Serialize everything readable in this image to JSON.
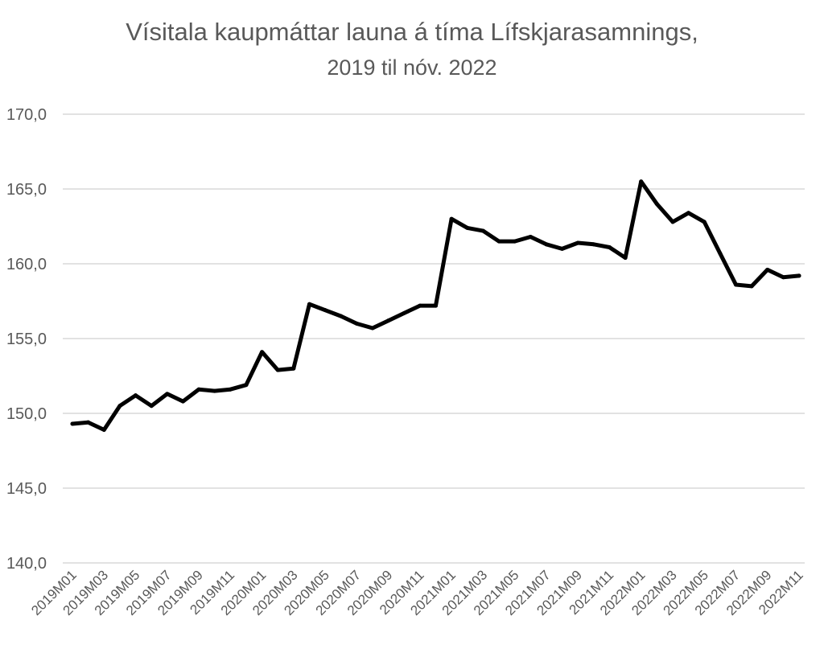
{
  "chart_data": {
    "type": "line",
    "title": "Vísitala kaupmáttar launa á tíma Lífskjarasamnings,",
    "subtitle": "2019 til nóv. 2022",
    "xlabel": "",
    "ylabel": "",
    "ylim": [
      140,
      170
    ],
    "yticks": [
      "140,0",
      "145,0",
      "150,0",
      "155,0",
      "160,0",
      "165,0",
      "170,0"
    ],
    "ytick_values": [
      140,
      145,
      150,
      155,
      160,
      165,
      170
    ],
    "grid": true,
    "legend": "none",
    "line_color": "#000000",
    "grid_color": "#d9d9d9",
    "x": [
      "2019M01",
      "2019M02",
      "2019M03",
      "2019M04",
      "2019M05",
      "2019M06",
      "2019M07",
      "2019M08",
      "2019M09",
      "2019M10",
      "2019M11",
      "2019M12",
      "2020M01",
      "2020M02",
      "2020M03",
      "2020M04",
      "2020M05",
      "2020M06",
      "2020M07",
      "2020M08",
      "2020M09",
      "2020M10",
      "2020M11",
      "2020M12",
      "2021M01",
      "2021M02",
      "2021M03",
      "2021M04",
      "2021M05",
      "2021M06",
      "2021M07",
      "2021M08",
      "2021M09",
      "2021M10",
      "2021M11",
      "2021M12",
      "2022M01",
      "2022M02",
      "2022M03",
      "2022M04",
      "2022M05",
      "2022M06",
      "2022M07",
      "2022M08",
      "2022M09",
      "2022M10",
      "2022M11"
    ],
    "xtick_labels": [
      "2019M01",
      "2019M03",
      "2019M05",
      "2019M07",
      "2019M09",
      "2019M11",
      "2020M01",
      "2020M03",
      "2020M05",
      "2020M07",
      "2020M09",
      "2020M11",
      "2021M01",
      "2021M03",
      "2021M05",
      "2021M07",
      "2021M09",
      "2021M11",
      "2022M01",
      "2022M03",
      "2022M05",
      "2022M07",
      "2022M09",
      "2022M11"
    ],
    "series": [
      {
        "values": [
          149.3,
          149.4,
          148.9,
          150.5,
          151.2,
          150.5,
          151.3,
          150.8,
          151.6,
          151.5,
          151.6,
          151.9,
          154.1,
          152.9,
          153.0,
          157.3,
          156.9,
          156.5,
          156.0,
          155.7,
          156.2,
          156.7,
          157.2,
          157.2,
          163.0,
          162.4,
          162.2,
          161.5,
          161.5,
          161.8,
          161.3,
          161.0,
          161.4,
          161.3,
          161.1,
          160.4,
          165.5,
          164.0,
          162.8,
          163.4,
          162.8,
          160.7,
          158.6,
          158.5,
          159.6,
          159.1,
          159.2
        ]
      }
    ]
  }
}
